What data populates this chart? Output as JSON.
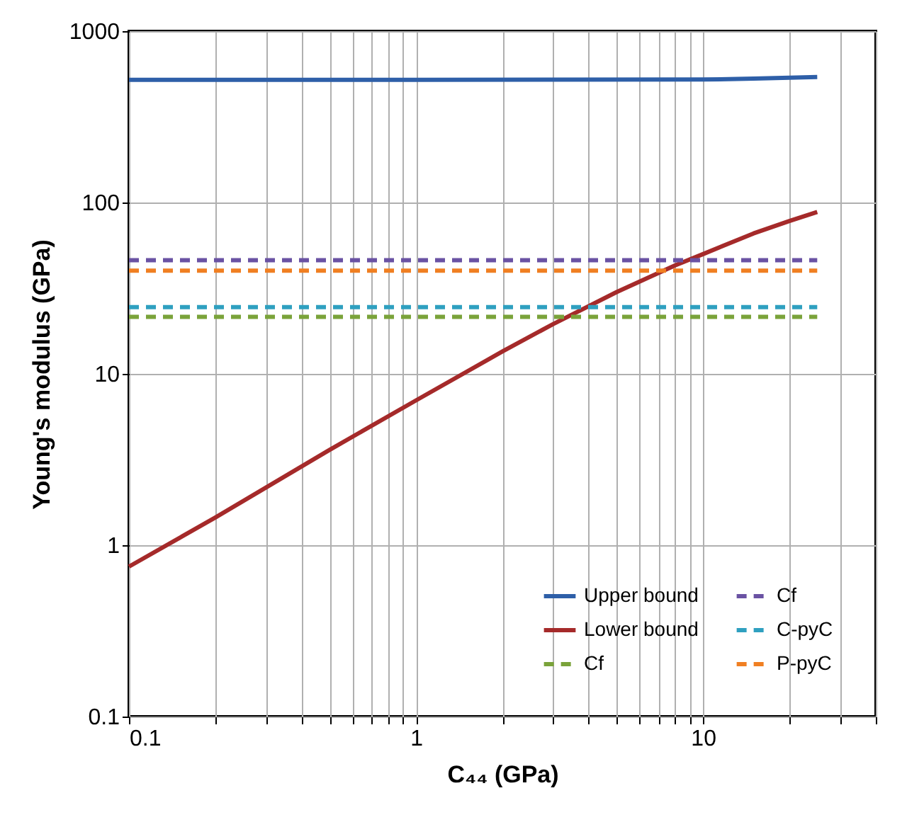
{
  "chart_data": {
    "type": "line",
    "xlabel": "C₄₄ (GPa)",
    "ylabel": "Young's modulus (GPa)",
    "log": "xy",
    "grid": true,
    "legend": "bottom right",
    "marker": "none",
    "xlim": [
      0.1,
      40
    ],
    "ylim": [
      0.1,
      1000
    ],
    "xticks": [
      {
        "value": 0.1,
        "label": "0.1"
      },
      {
        "value": 0.2,
        "label": null
      },
      {
        "value": 0.3,
        "label": null
      },
      {
        "value": 0.4,
        "label": null
      },
      {
        "value": 0.5,
        "label": null
      },
      {
        "value": 0.6,
        "label": null
      },
      {
        "value": 0.7,
        "label": null
      },
      {
        "value": 0.8,
        "label": null
      },
      {
        "value": 0.9,
        "label": null
      },
      1,
      {
        "value": 2,
        "label": null
      },
      {
        "value": 3,
        "label": null
      },
      {
        "value": 4,
        "label": null
      },
      {
        "value": 5,
        "label": null
      },
      {
        "value": 6,
        "label": null
      },
      {
        "value": 7,
        "label": null
      },
      {
        "value": 8,
        "label": null
      },
      {
        "value": 9,
        "label": null
      },
      10,
      {
        "value": 20,
        "label": null
      },
      {
        "value": 30,
        "label": null
      },
      {
        "value": 40,
        "label": null
      }
    ],
    "yticks": [
      0.1,
      1,
      10,
      100,
      1000
    ],
    "series": [
      {
        "name": "Upper bound",
        "color": "#2e5fa8",
        "line_style": "solid",
        "x": [
          0.1,
          1,
          10,
          15,
          20,
          25
        ],
        "values": [
          520,
          520,
          522,
          528,
          535,
          540
        ]
      },
      {
        "name": "Lower bound",
        "color": "#a52a2a",
        "line_style": "solid",
        "x": [
          0.1,
          0.2,
          0.5,
          1,
          2,
          3,
          5,
          8,
          10,
          15,
          20,
          25
        ],
        "values": [
          0.75,
          1.45,
          3.6,
          7,
          13.5,
          19.5,
          30,
          43,
          50,
          66,
          78,
          88
        ]
      },
      {
        "name": "Cf",
        "color": "#7aa33a",
        "line_style": "dashed",
        "x": [
          0.1,
          25
        ],
        "values": [
          21.5,
          21.5
        ]
      },
      {
        "name": "Cf",
        "color": "#6a52a3",
        "line_style": "dashed",
        "x": [
          0.1,
          25
        ],
        "values": [
          46,
          46
        ]
      },
      {
        "name": "C-pyC",
        "color": "#2fa0c0",
        "line_style": "dashed",
        "x": [
          0.1,
          25
        ],
        "values": [
          24.5,
          24.5
        ]
      },
      {
        "name": "P-pyC",
        "color": "#f07f22",
        "line_style": "dashed",
        "x": [
          0.1,
          25
        ],
        "values": [
          40,
          40
        ]
      }
    ]
  }
}
